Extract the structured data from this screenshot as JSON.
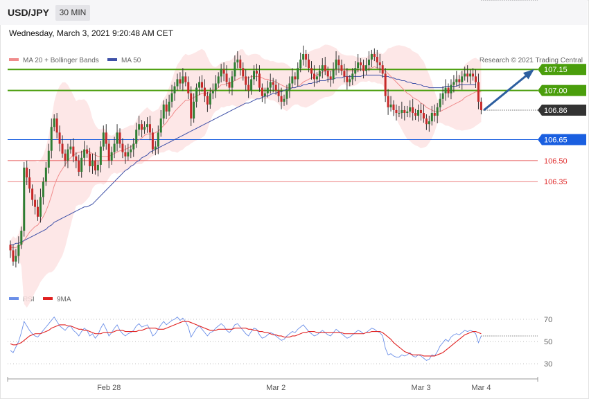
{
  "header": {
    "pair": "USD/JPY",
    "timeframe": "30 MIN",
    "datetime": "Wednesday, March 3, 2021 9:20:48 AM CET"
  },
  "legend": {
    "ma20": "MA 20 + Bollinger Bands",
    "ma50": "MA 50",
    "credit": "Research © 2021 Trading Central",
    "rsi": "RSI",
    "ma9": "9MA"
  },
  "colors": {
    "bull": "#2e7d32",
    "bear": "#c62828",
    "ma20": "#f08c8c",
    "ma50": "#3f51a8",
    "band": "#fde3e3",
    "green_level": "#4a9e0c",
    "support_blue": "#1a5fe0",
    "red_level": "#e03030",
    "last_price": "#333333",
    "arrow": "#2d5fa0",
    "rsi": "#6b8fe8",
    "rsi_ma": "#e02020"
  },
  "chart_data": [
    {
      "type": "candlestick",
      "title": "USD/JPY",
      "ylim": [
        105.62,
        107.25
      ],
      "levels": [
        {
          "value": 107.15,
          "label": "107.15",
          "kind": "target"
        },
        {
          "value": 107.0,
          "label": "107.00",
          "kind": "target"
        },
        {
          "value": 106.86,
          "label": "106.86",
          "kind": "last"
        },
        {
          "value": 106.65,
          "label": "106.65",
          "kind": "pivot"
        },
        {
          "value": 106.5,
          "label": "106.50",
          "kind": "support"
        },
        {
          "value": 106.35,
          "label": "106.35",
          "kind": "support"
        }
      ],
      "projection": {
        "from": 106.86,
        "to": 107.15
      },
      "x_ticks": [
        {
          "index": 36,
          "label": "Feb 28"
        },
        {
          "index": 97,
          "label": "Mar 2"
        },
        {
          "index": 150,
          "label": "Mar 3"
        },
        {
          "index": 172,
          "label": "Mar 4"
        }
      ],
      "closes": [
        105.86,
        105.78,
        105.82,
        105.9,
        106.0,
        106.45,
        106.38,
        106.3,
        106.22,
        106.17,
        106.1,
        106.24,
        106.35,
        106.45,
        106.57,
        106.74,
        106.8,
        106.7,
        106.62,
        106.55,
        106.5,
        106.58,
        106.6,
        106.53,
        106.5,
        106.42,
        106.52,
        106.58,
        106.55,
        106.46,
        106.5,
        106.43,
        106.47,
        106.6,
        106.7,
        106.62,
        106.5,
        106.56,
        106.62,
        106.7,
        106.62,
        106.56,
        106.53,
        106.56,
        106.58,
        106.62,
        106.72,
        106.76,
        106.72,
        106.74,
        106.76,
        106.7,
        106.58,
        106.6,
        106.7,
        106.8,
        106.9,
        106.85,
        106.92,
        106.98,
        107.03,
        107.08,
        107.05,
        107.1,
        107.06,
        106.98,
        106.8,
        106.92,
        107.02,
        107.06,
        107.02,
        106.96,
        106.9,
        106.98,
        107.0,
        107.05,
        107.1,
        107.15,
        107.12,
        107.06,
        107.02,
        107.1,
        107.2,
        107.22,
        107.16,
        107.1,
        107.04,
        107.0,
        107.08,
        107.14,
        107.12,
        107.02,
        106.96,
        106.98,
        107.02,
        107.06,
        107.04,
        107.0,
        106.96,
        106.92,
        106.94,
        107.0,
        107.05,
        107.1,
        107.08,
        107.16,
        107.22,
        107.26,
        107.22,
        107.16,
        107.12,
        107.08,
        107.1,
        107.14,
        107.18,
        107.14,
        107.1,
        107.08,
        107.15,
        107.22,
        107.18,
        107.14,
        107.1,
        107.06,
        107.08,
        107.12,
        107.16,
        107.2,
        107.18,
        107.14,
        107.18,
        107.22,
        107.26,
        107.24,
        107.2,
        107.18,
        107.12,
        106.96,
        106.88,
        106.9,
        106.86,
        106.84,
        106.84,
        106.86,
        106.84,
        106.85,
        106.88,
        106.84,
        106.82,
        106.86,
        106.84,
        106.8,
        106.76,
        106.78,
        106.84,
        106.82,
        106.88,
        106.94,
        106.98,
        107.02,
        106.98,
        107.04,
        107.06,
        107.08,
        107.06,
        107.1,
        107.12,
        107.1,
        107.12,
        107.1,
        107.06,
        106.92,
        106.86
      ],
      "ma20": [
        105.88,
        105.88,
        105.88,
        105.89,
        105.9,
        105.93,
        105.96,
        105.99,
        106.01,
        106.03,
        106.04,
        106.07,
        106.1,
        106.14,
        106.19,
        106.25,
        106.32,
        106.37,
        106.41,
        106.44,
        106.47,
        106.5,
        106.52,
        106.54,
        106.55,
        106.56,
        106.56,
        106.57,
        106.57,
        106.56,
        106.55,
        106.54,
        106.53,
        106.53,
        106.53,
        106.53,
        106.53,
        106.54,
        106.55,
        106.56,
        106.57,
        106.57,
        106.58,
        106.59,
        106.6,
        106.61,
        106.63,
        106.65,
        106.66,
        106.68,
        106.69,
        106.69,
        106.69,
        106.7,
        106.71,
        106.73,
        106.75,
        106.77,
        106.8,
        106.82,
        106.85,
        106.87,
        106.89,
        106.91,
        106.93,
        106.93,
        106.94,
        106.95,
        106.96,
        106.97,
        106.98,
        106.98,
        106.98,
        106.99,
        107.0,
        107.01,
        107.02,
        107.04,
        107.04,
        107.05,
        107.05,
        107.06,
        107.07,
        107.08,
        107.09,
        107.09,
        107.09,
        107.09,
        107.1,
        107.1,
        107.1,
        107.1,
        107.09,
        107.08,
        107.08,
        107.07,
        107.07,
        107.06,
        107.05,
        107.04,
        107.03,
        107.02,
        107.02,
        107.02,
        107.02,
        107.03,
        107.04,
        107.06,
        107.07,
        107.08,
        107.09,
        107.1,
        107.11,
        107.12,
        107.13,
        107.14,
        107.14,
        107.14,
        107.14,
        107.15,
        107.15,
        107.15,
        107.15,
        107.14,
        107.14,
        107.14,
        107.14,
        107.14,
        107.15,
        107.15,
        107.15,
        107.16,
        107.16,
        107.17,
        107.16,
        107.16,
        107.15,
        107.14,
        107.12,
        107.1,
        107.08,
        107.06,
        107.04,
        107.02,
        107.0,
        106.98,
        106.97,
        106.95,
        106.94,
        106.93,
        106.91,
        106.9,
        106.88,
        106.87,
        106.86,
        106.85,
        106.85,
        106.85,
        106.86,
        106.87,
        106.88,
        106.89,
        106.9,
        106.91,
        106.92,
        106.93,
        106.95,
        106.96,
        106.97,
        106.98,
        106.99,
        106.99,
        106.99
      ],
      "ma50": [
        105.9,
        105.9,
        105.91,
        105.91,
        105.92,
        105.93,
        105.94,
        105.95,
        105.96,
        105.97,
        105.98,
        105.99,
        106.0,
        106.01,
        106.03,
        106.04,
        106.06,
        106.07,
        106.08,
        106.09,
        106.1,
        106.11,
        106.12,
        106.13,
        106.14,
        106.15,
        106.16,
        106.17,
        106.17,
        106.18,
        106.19,
        106.21,
        106.23,
        106.25,
        106.27,
        106.29,
        106.31,
        106.33,
        106.35,
        106.37,
        106.39,
        106.41,
        106.43,
        106.44,
        106.46,
        106.47,
        106.49,
        106.5,
        106.52,
        106.53,
        106.54,
        106.56,
        106.57,
        106.58,
        106.59,
        106.6,
        106.61,
        106.62,
        106.63,
        106.64,
        106.65,
        106.66,
        106.67,
        106.68,
        106.69,
        106.7,
        106.71,
        106.72,
        106.73,
        106.74,
        106.75,
        106.76,
        106.77,
        106.78,
        106.79,
        106.8,
        106.81,
        106.82,
        106.83,
        106.84,
        106.85,
        106.86,
        106.87,
        106.88,
        106.89,
        106.9,
        106.91,
        106.91,
        106.92,
        106.93,
        106.94,
        106.94,
        106.95,
        106.96,
        106.96,
        106.97,
        106.98,
        106.98,
        106.99,
        106.99,
        107.0,
        107.01,
        107.01,
        107.02,
        107.02,
        107.03,
        107.03,
        107.04,
        107.04,
        107.05,
        107.05,
        107.06,
        107.06,
        107.07,
        107.07,
        107.07,
        107.08,
        107.08,
        107.08,
        107.09,
        107.09,
        107.09,
        107.1,
        107.1,
        107.1,
        107.1,
        107.1,
        107.1,
        107.1,
        107.11,
        107.11,
        107.11,
        107.11,
        107.11,
        107.11,
        107.11,
        107.1,
        107.1,
        107.1,
        107.09,
        107.09,
        107.08,
        107.08,
        107.07,
        107.07,
        107.06,
        107.06,
        107.05,
        107.05,
        107.04,
        107.04,
        107.03,
        107.03,
        107.02,
        107.02,
        107.02,
        107.02,
        107.02,
        107.02,
        107.03,
        107.03,
        107.03,
        107.03,
        107.03,
        107.04,
        107.04,
        107.04,
        107.04,
        107.04,
        107.04,
        107.04
      ]
    },
    {
      "type": "line",
      "title": "RSI",
      "ylim": [
        22,
        78
      ],
      "y_ticks": [
        {
          "value": 70,
          "label": "70"
        },
        {
          "value": 50,
          "label": "50"
        },
        {
          "value": 30,
          "label": "30"
        }
      ],
      "series": [
        {
          "name": "RSI",
          "values": [
            42,
            40,
            45,
            50,
            58,
            68,
            64,
            60,
            57,
            55,
            54,
            57,
            60,
            63,
            66,
            69,
            72,
            68,
            64,
            62,
            60,
            63,
            64,
            60,
            58,
            55,
            59,
            62,
            60,
            55,
            57,
            53,
            56,
            62,
            66,
            61,
            55,
            58,
            62,
            65,
            60,
            57,
            55,
            57,
            58,
            60,
            64,
            66,
            63,
            64,
            65,
            61,
            55,
            57,
            61,
            65,
            68,
            65,
            67,
            69,
            70,
            72,
            69,
            71,
            68,
            63,
            54,
            58,
            62,
            64,
            61,
            58,
            55,
            58,
            59,
            62,
            64,
            66,
            64,
            60,
            58,
            61,
            65,
            66,
            63,
            60,
            57,
            55,
            59,
            62,
            61,
            56,
            53,
            54,
            56,
            58,
            57,
            55,
            53,
            51,
            52,
            55,
            57,
            59,
            58,
            61,
            63,
            65,
            62,
            59,
            57,
            55,
            56,
            58,
            60,
            58,
            56,
            55,
            58,
            61,
            59,
            57,
            55,
            53,
            54,
            56,
            58,
            60,
            59,
            57,
            58,
            60,
            62,
            61,
            59,
            58,
            55,
            44,
            38,
            39,
            37,
            36,
            36,
            38,
            37,
            38,
            40,
            37,
            36,
            38,
            37,
            35,
            33,
            34,
            38,
            37,
            41,
            46,
            49,
            52,
            50,
            54,
            56,
            57,
            56,
            58,
            60,
            59,
            60,
            59,
            57,
            49,
            55
          ]
        },
        {
          "name": "9MA",
          "values": [
            48,
            47,
            47,
            48,
            49,
            51,
            53,
            55,
            56,
            57,
            57,
            57,
            58,
            59,
            60,
            62,
            63,
            64,
            65,
            65,
            65,
            64,
            64,
            63,
            62,
            61,
            61,
            60,
            60,
            59,
            58,
            57,
            57,
            57,
            58,
            58,
            58,
            58,
            59,
            60,
            60,
            60,
            59,
            59,
            59,
            59,
            59,
            60,
            60,
            61,
            62,
            62,
            62,
            62,
            61,
            61,
            61,
            62,
            63,
            64,
            65,
            66,
            67,
            68,
            68,
            68,
            67,
            66,
            65,
            64,
            63,
            62,
            61,
            60,
            60,
            60,
            61,
            61,
            61,
            61,
            61,
            61,
            62,
            62,
            62,
            62,
            62,
            61,
            61,
            60,
            60,
            59,
            59,
            58,
            58,
            57,
            56,
            56,
            55,
            55,
            54,
            54,
            54,
            55,
            55,
            56,
            57,
            58,
            58,
            59,
            59,
            59,
            58,
            58,
            58,
            58,
            58,
            58,
            58,
            58,
            58,
            58,
            57,
            57,
            57,
            57,
            57,
            57,
            57,
            57,
            58,
            58,
            59,
            59,
            59,
            59,
            58,
            56,
            54,
            52,
            49,
            47,
            45,
            43,
            41,
            40,
            39,
            38,
            38,
            38,
            38,
            37,
            37,
            37,
            37,
            37,
            38,
            39,
            40,
            42,
            44,
            46,
            48,
            50,
            52,
            54,
            56,
            57,
            58,
            59,
            59,
            58,
            57
          ]
        }
      ],
      "x_ticks": [
        {
          "index": 36,
          "label": "Feb 28"
        },
        {
          "index": 97,
          "label": "Mar 2"
        },
        {
          "index": 150,
          "label": "Mar 3"
        },
        {
          "index": 172,
          "label": "Mar 4"
        }
      ]
    }
  ]
}
